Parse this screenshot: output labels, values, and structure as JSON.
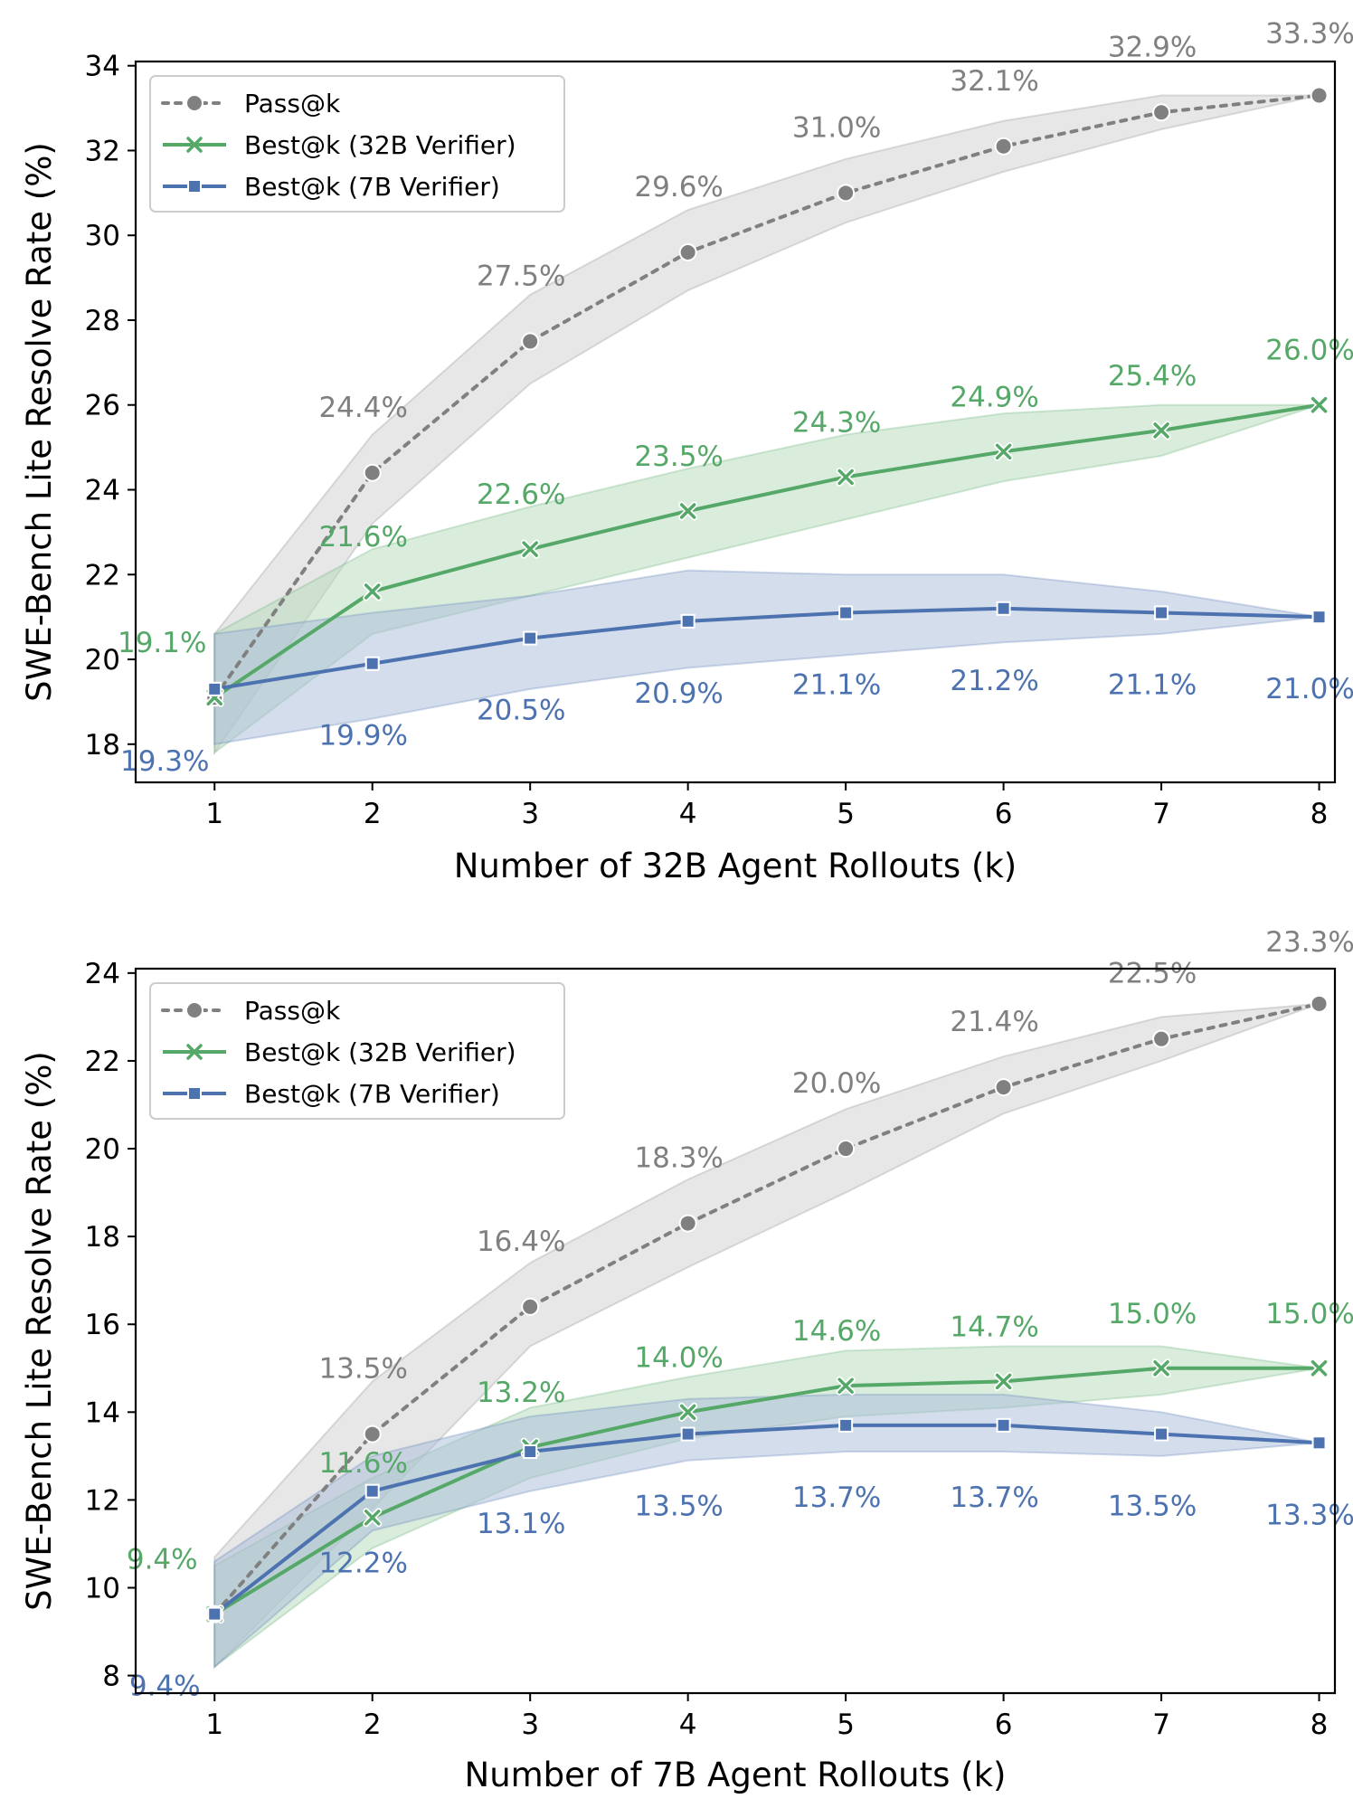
{
  "colors": {
    "pass": "#808080",
    "best32": "#55a868",
    "best7": "#4c72b0",
    "pass_band": "#cfcfcf",
    "best32_band": "#b6dcbc",
    "best7_band": "#a9bbda"
  },
  "legend": {
    "items": [
      {
        "label": "Pass@k",
        "key": "pass",
        "marker": "circle",
        "dash": true
      },
      {
        "label": "Best@k (32B Verifier)",
        "key": "best32",
        "marker": "x",
        "dash": false
      },
      {
        "label": "Best@k (7B Verifier)",
        "key": "best7",
        "marker": "square",
        "dash": false
      }
    ],
    "placement": "top-left"
  },
  "chart_data": [
    {
      "type": "line",
      "title": "",
      "xlabel": "Number of 32B Agent Rollouts (k)",
      "ylabel": "SWE-Bench Lite Resolve Rate (%)",
      "x": [
        1,
        2,
        3,
        4,
        5,
        6,
        7,
        8
      ],
      "xlim": [
        0.5,
        8.1
      ],
      "ylim": [
        17.1,
        34.1
      ],
      "yticks": [
        18,
        20,
        22,
        24,
        26,
        28,
        30,
        32,
        34
      ],
      "series": [
        {
          "name": "Pass@k",
          "key": "pass",
          "values": [
            19.1,
            24.4,
            27.5,
            29.6,
            31.0,
            32.1,
            32.9,
            33.3
          ],
          "band_low": [
            17.8,
            23.2,
            26.5,
            28.7,
            30.3,
            31.5,
            32.5,
            33.3
          ],
          "band_high": [
            20.6,
            25.3,
            28.6,
            30.6,
            31.8,
            32.7,
            33.3,
            33.3
          ],
          "labels": [
            "19.1%",
            "24.4%",
            "27.5%",
            "29.6%",
            "31.0%",
            "32.1%",
            "32.9%",
            "33.3%"
          ]
        },
        {
          "name": "Best@k (32B Verifier)",
          "key": "best32",
          "values": [
            19.1,
            21.6,
            22.6,
            23.5,
            24.3,
            24.9,
            25.4,
            26.0
          ],
          "band_low": [
            17.8,
            20.6,
            21.5,
            22.4,
            23.3,
            24.2,
            24.8,
            26.0
          ],
          "band_high": [
            20.6,
            22.6,
            23.6,
            24.5,
            25.3,
            25.8,
            26.0,
            26.0
          ],
          "labels": [
            "19.1%",
            "21.6%",
            "22.6%",
            "23.5%",
            "24.3%",
            "24.9%",
            "25.4%",
            "26.0%"
          ]
        },
        {
          "name": "Best@k (7B Verifier)",
          "key": "best7",
          "values": [
            19.3,
            19.9,
            20.5,
            20.9,
            21.1,
            21.2,
            21.1,
            21.0
          ],
          "band_low": [
            18.0,
            18.6,
            19.3,
            19.8,
            20.1,
            20.4,
            20.6,
            21.0
          ],
          "band_high": [
            20.6,
            21.1,
            21.5,
            22.1,
            22.0,
            22.0,
            21.6,
            21.0
          ],
          "labels": [
            "19.3%",
            "19.9%",
            "20.5%",
            "20.9%",
            "21.1%",
            "21.2%",
            "21.1%",
            "21.0%"
          ]
        }
      ]
    },
    {
      "type": "line",
      "title": "",
      "xlabel": "Number of 7B Agent Rollouts (k)",
      "ylabel": "SWE-Bench Lite Resolve Rate (%)",
      "x": [
        1,
        2,
        3,
        4,
        5,
        6,
        7,
        8
      ],
      "xlim": [
        0.5,
        8.1
      ],
      "ylim": [
        7.6,
        24.1
      ],
      "yticks": [
        8,
        10,
        12,
        14,
        16,
        18,
        20,
        22,
        24
      ],
      "series": [
        {
          "name": "Pass@k",
          "key": "pass",
          "values": [
            9.4,
            13.5,
            16.4,
            18.3,
            20.0,
            21.4,
            22.5,
            23.3
          ],
          "band_low": [
            8.2,
            11.8,
            15.5,
            17.3,
            19.0,
            20.8,
            22.0,
            23.3
          ],
          "band_high": [
            10.7,
            14.7,
            17.4,
            19.3,
            20.9,
            22.1,
            23.0,
            23.3
          ],
          "labels": [
            "9.4%",
            "13.5%",
            "16.4%",
            "18.3%",
            "20.0%",
            "21.4%",
            "22.5%",
            "23.3%"
          ]
        },
        {
          "name": "Best@k (32B Verifier)",
          "key": "best32",
          "values": [
            9.4,
            11.6,
            13.2,
            14.0,
            14.6,
            14.7,
            15.0,
            15.0
          ],
          "band_low": [
            8.2,
            10.9,
            12.5,
            13.4,
            13.9,
            14.1,
            14.4,
            15.0
          ],
          "band_high": [
            10.5,
            12.5,
            14.1,
            14.8,
            15.4,
            15.5,
            15.5,
            15.0
          ],
          "labels": [
            "9.4%",
            "11.6%",
            "13.2%",
            "14.0%",
            "14.6%",
            "14.7%",
            "15.0%",
            "15.0%"
          ]
        },
        {
          "name": "Best@k (7B Verifier)",
          "key": "best7",
          "values": [
            9.4,
            12.2,
            13.1,
            13.5,
            13.7,
            13.7,
            13.5,
            13.3
          ],
          "band_low": [
            8.2,
            11.3,
            12.2,
            12.9,
            13.1,
            13.1,
            13.0,
            13.3
          ],
          "band_high": [
            10.6,
            13.0,
            13.9,
            14.3,
            14.4,
            14.4,
            14.0,
            13.3
          ],
          "labels": [
            "9.4%",
            "12.2%",
            "13.1%",
            "13.5%",
            "13.7%",
            "13.7%",
            "13.5%",
            "13.3%"
          ]
        }
      ]
    }
  ]
}
